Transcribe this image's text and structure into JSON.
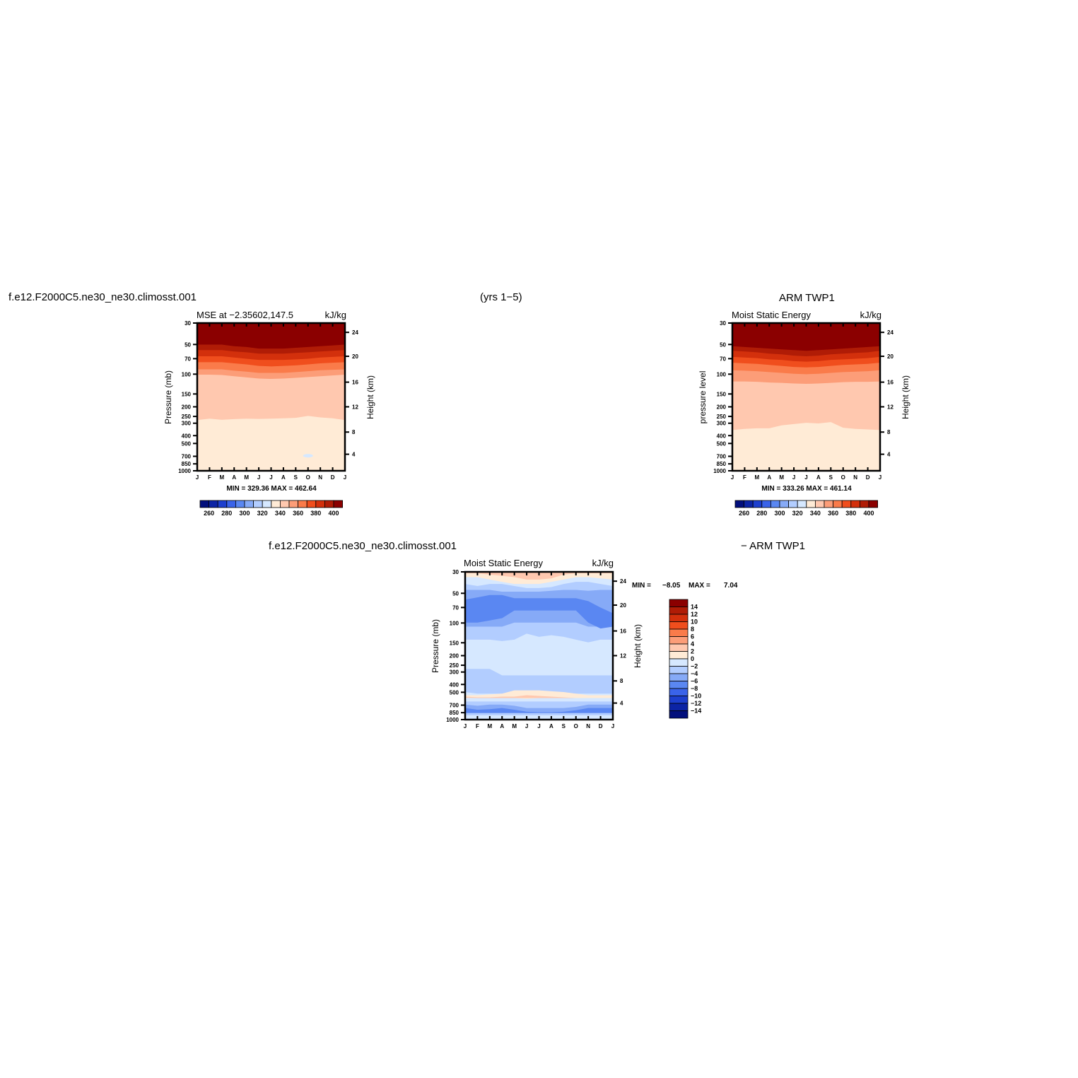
{
  "headers": {
    "top_left": "f.e12.F2000C5.ne30_ne30.climosst.001",
    "top_center": "(yrs 1−5)",
    "top_right": "ARM TWP1",
    "bottom_left": "f.e12.F2000C5.ne30_ne30.climosst.001",
    "bottom_right": "− ARM TWP1"
  },
  "chart_data": [
    {
      "id": "model",
      "type": "heatmap",
      "title_left": "MSE at −2.35602,147.5",
      "title_right": "kJ/kg",
      "ylabel": "Pressure (mb)",
      "ylabel_right": "Height (km)",
      "x_ticks": [
        "J",
        "F",
        "M",
        "A",
        "M",
        "J",
        "J",
        "A",
        "S",
        "O",
        "N",
        "D",
        "J"
      ],
      "y_ticks": [
        "30",
        "50",
        "70",
        "100",
        "150",
        "200",
        "250",
        "300",
        "400",
        "500",
        "700",
        "850",
        "1000"
      ],
      "y_right_ticks": [
        "24",
        "20",
        "16",
        "12",
        "8",
        "4"
      ],
      "y_scale": "log",
      "y_range": [
        30,
        1000
      ],
      "stats": "MIN = 329.36 MAX = 462.64",
      "colorbar_labels": [
        "260",
        "280",
        "300",
        "320",
        "340",
        "360",
        "380",
        "400"
      ],
      "contours": {
        "p400": [
          50,
          50,
          50,
          52,
          53,
          55,
          55,
          55,
          54,
          53,
          52,
          51,
          50
        ],
        "p380": [
          57,
          57,
          57,
          59,
          60,
          62,
          62,
          62,
          61,
          60,
          59,
          58,
          57
        ],
        "p370": [
          66,
          66,
          66,
          68,
          70,
          72,
          72,
          72,
          71,
          70,
          68,
          67,
          66
        ],
        "p360": [
          76,
          76,
          76,
          78,
          80,
          83,
          84,
          83,
          82,
          80,
          78,
          77,
          76
        ],
        "p350": [
          90,
          90,
          90,
          93,
          95,
          98,
          98,
          98,
          96,
          94,
          92,
          91,
          90
        ],
        "p340": [
          102,
          102,
          103,
          106,
          109,
          112,
          113,
          112,
          110,
          108,
          106,
          104,
          102
        ],
        "p330": [
          300,
          290,
          298,
          293,
          290,
          292,
          290,
          288,
          285,
          272,
          282,
          288,
          300
        ]
      },
      "small_patch": {
        "x_month": 9,
        "pressure": 700,
        "level": "below 330"
      }
    },
    {
      "id": "obs",
      "type": "heatmap",
      "title_left": "Moist Static Energy",
      "title_right": "kJ/kg",
      "ylabel": "pressure level",
      "ylabel_right": "Height (km)",
      "x_ticks": [
        "J",
        "F",
        "M",
        "A",
        "M",
        "J",
        "J",
        "A",
        "S",
        "O",
        "N",
        "D",
        "J"
      ],
      "y_ticks": [
        "30",
        "50",
        "70",
        "100",
        "150",
        "200",
        "250",
        "300",
        "400",
        "500",
        "700",
        "850",
        "1000"
      ],
      "y_right_ticks": [
        "24",
        "20",
        "16",
        "12",
        "8",
        "4"
      ],
      "y_scale": "log",
      "y_range": [
        30,
        1000
      ],
      "stats": "MIN = 333.26 MAX = 461.14",
      "colorbar_labels": [
        "260",
        "280",
        "300",
        "320",
        "340",
        "360",
        "380",
        "400"
      ],
      "contours": {
        "p400": [
          52,
          53,
          54,
          55,
          56,
          57,
          58,
          57,
          56,
          55,
          54,
          53,
          52
        ],
        "p380": [
          58,
          59,
          60,
          62,
          63,
          65,
          66,
          65,
          63,
          62,
          61,
          60,
          58
        ],
        "p370": [
          67,
          68,
          69,
          71,
          72,
          74,
          75,
          74,
          72,
          71,
          70,
          69,
          67
        ],
        "p360": [
          77,
          78,
          79,
          81,
          83,
          85,
          86,
          85,
          83,
          81,
          80,
          79,
          77
        ],
        "p350": [
          92,
          93,
          94,
          96,
          98,
          100,
          101,
          100,
          98,
          96,
          95,
          94,
          92
        ],
        "p340": [
          120,
          120,
          121,
          123,
          124,
          126,
          127,
          126,
          124,
          122,
          121,
          121,
          120
        ],
        "p330": [
          380,
          370,
          365,
          365,
          340,
          330,
          320,
          325,
          315,
          360,
          370,
          375,
          380
        ],
        "p320": [
          920,
          960,
          930,
          960,
          990,
          990,
          990,
          990,
          990,
          990,
          950,
          930,
          920
        ]
      }
    },
    {
      "id": "diff",
      "type": "heatmap",
      "title_left": "Moist Static Energy",
      "title_right": "kJ/kg",
      "ylabel": "Pressure (mb)",
      "ylabel_right": "Height (km)",
      "x_ticks": [
        "J",
        "F",
        "M",
        "A",
        "M",
        "J",
        "J",
        "A",
        "S",
        "O",
        "N",
        "D",
        "J"
      ],
      "y_ticks": [
        "30",
        "50",
        "70",
        "100",
        "150",
        "200",
        "250",
        "300",
        "400",
        "500",
        "700",
        "850",
        "1000"
      ],
      "y_right_ticks": [
        "24",
        "20",
        "16",
        "12",
        "8",
        "4"
      ],
      "y_scale": "log",
      "y_range": [
        30,
        1000
      ],
      "stats_min_label": "MIN =",
      "stats_min": "−8.05",
      "stats_max_label": "MAX =",
      "stats_max": "7.04",
      "colorbar_labels": [
        "14",
        "12",
        "10",
        "8",
        "6",
        "4",
        "2",
        "0",
        "−2",
        "−4",
        "−6",
        "−8",
        "−10",
        "−12",
        "−14"
      ]
    }
  ],
  "colors": {
    "div": [
      "#8b0000",
      "#b01c06",
      "#d3300c",
      "#f04e1d",
      "#fa7b4a",
      "#fc9d78",
      "#ffc8af",
      "#ffebd6",
      "#d6e8ff",
      "#b2cdff",
      "#86aaf7",
      "#5a87f2",
      "#3a63e9",
      "#1d3fce",
      "#0c24a5",
      "#020f7c"
    ],
    "mse_scale": [
      "#020f7c",
      "#0c24a5",
      "#1d3fce",
      "#3a63e9",
      "#5a87f2",
      "#86aaf7",
      "#b2cdff",
      "#d6e8ff",
      "#ffebd6",
      "#ffc8af",
      "#fc9d78",
      "#fa7b4a",
      "#f04e1d",
      "#d3300c",
      "#b01c06",
      "#8b0000"
    ]
  }
}
